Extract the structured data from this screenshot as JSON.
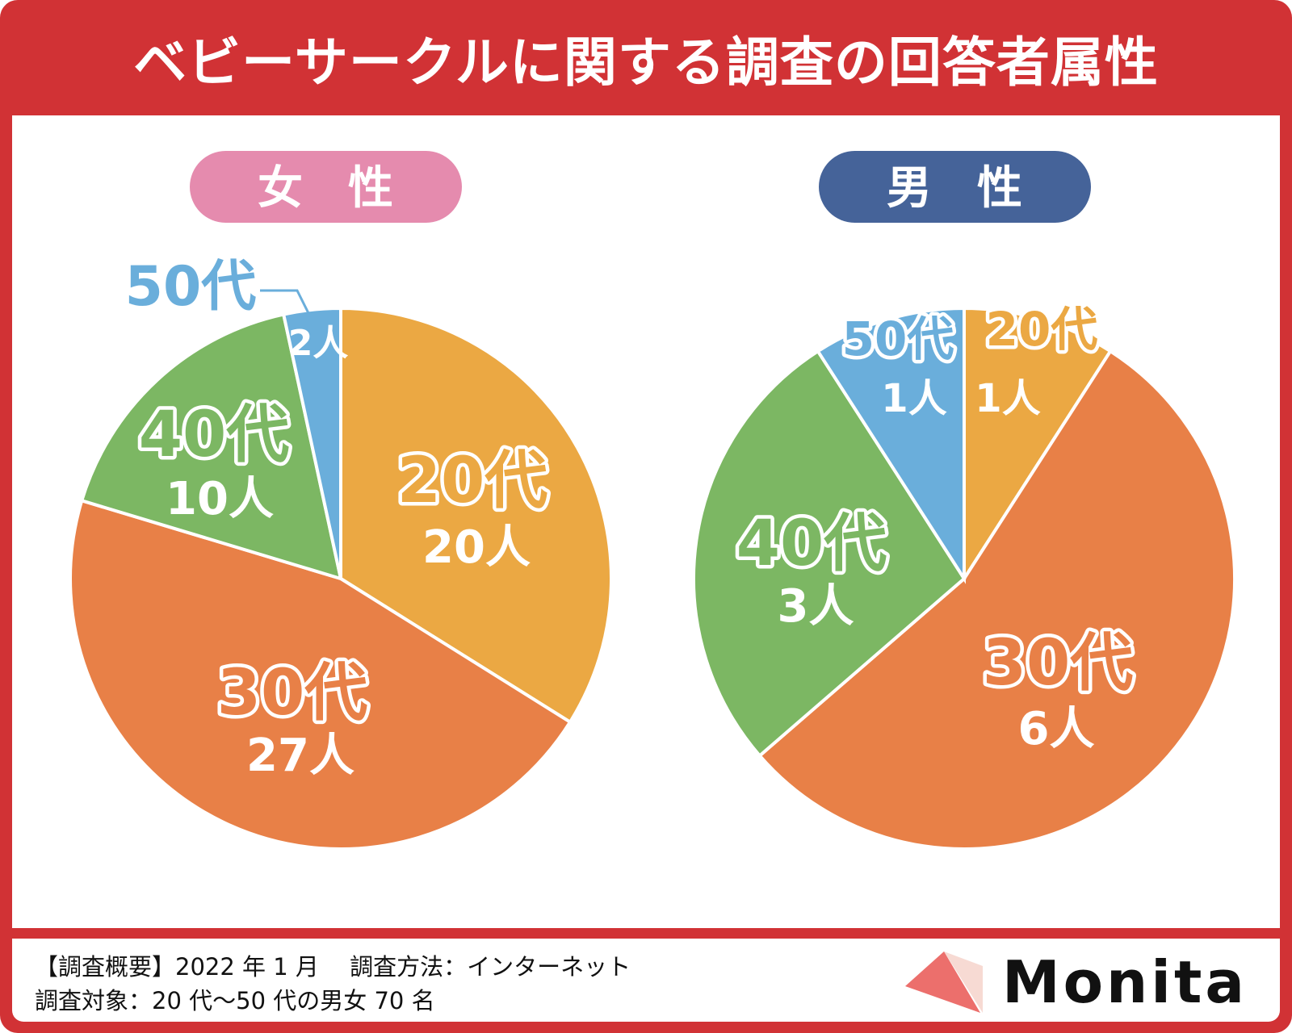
{
  "title": "ベビーサークルに関する調査の回答者属性",
  "colors": {
    "frame": "#D13235",
    "age20": "#EBA843",
    "age30": "#E88047",
    "age40": "#7CB763",
    "age50": "#6AAEDB",
    "female_pill": "#E58BAE",
    "male_pill": "#456399"
  },
  "chart_data": [
    {
      "type": "pie",
      "title": "女　性",
      "unit": "人",
      "categories": [
        "20代",
        "30代",
        "40代",
        "50代"
      ],
      "values": [
        20,
        27,
        10,
        2
      ],
      "labels": [
        "20代",
        "30代",
        "40代",
        "50代"
      ],
      "value_labels": [
        "20人",
        "27人",
        "10人",
        "2人"
      ]
    },
    {
      "type": "pie",
      "title": "男　性",
      "unit": "人",
      "categories": [
        "20代",
        "30代",
        "40代",
        "50代"
      ],
      "values": [
        1,
        6,
        3,
        1
      ],
      "labels": [
        "20代",
        "30代",
        "40代",
        "50代"
      ],
      "value_labels": [
        "1人",
        "6人",
        "3人",
        "1人"
      ]
    }
  ],
  "footer": {
    "line1": "【調査概要】2022 年 1 月　 調査方法：インターネット",
    "line2": "調査対象：20 代～50 代の男女 70 名",
    "logo": "Monita"
  }
}
